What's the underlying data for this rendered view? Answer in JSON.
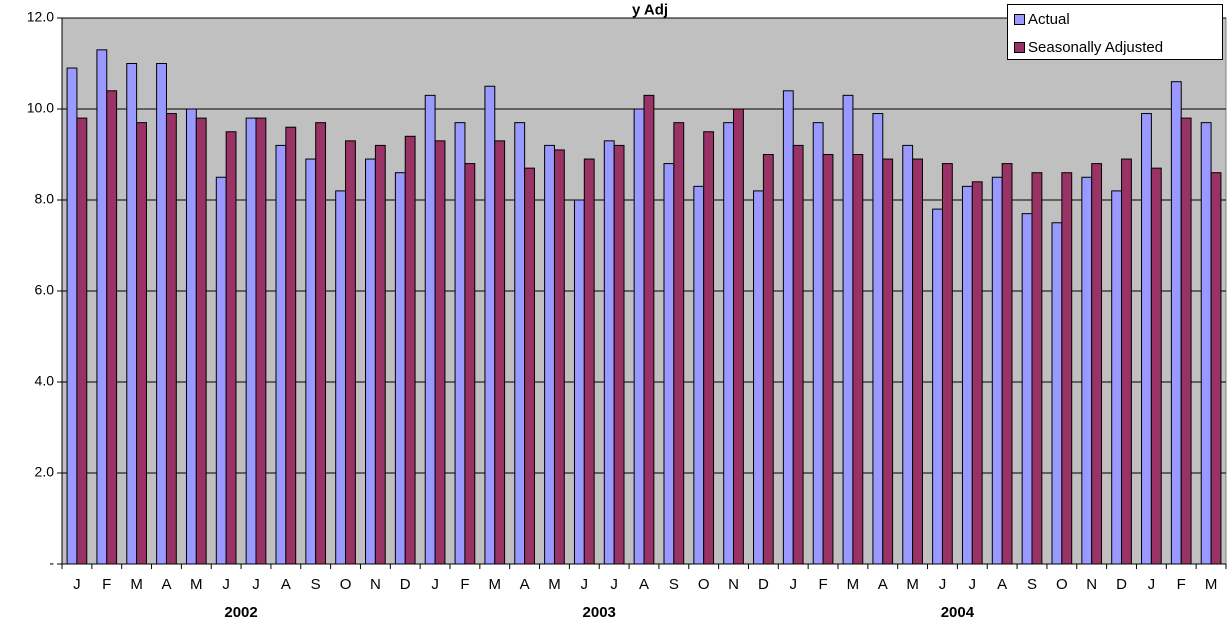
{
  "colors": {
    "actual": "#9999ff",
    "adjusted": "#993366",
    "plot_bg": "#c0c0c0",
    "grid": "#000000"
  },
  "chart_data": {
    "type": "bar",
    "title_fragment": "y Adj",
    "categories": [
      "J",
      "F",
      "M",
      "A",
      "M",
      "J",
      "J",
      "A",
      "S",
      "O",
      "N",
      "D",
      "J",
      "F",
      "M",
      "A",
      "M",
      "J",
      "J",
      "A",
      "S",
      "O",
      "N",
      "D",
      "J",
      "F",
      "M",
      "A",
      "M",
      "J",
      "J",
      "A",
      "S",
      "O",
      "N",
      "D",
      "J",
      "F",
      "M"
    ],
    "year_labels": [
      {
        "label": "2002",
        "start_index": 0,
        "end_index": 11
      },
      {
        "label": "2003",
        "start_index": 12,
        "end_index": 23
      },
      {
        "label": "2004",
        "start_index": 24,
        "end_index": 35
      }
    ],
    "series": [
      {
        "name": "Actual",
        "color": "#9999ff",
        "values": [
          10.9,
          11.3,
          11.0,
          11.0,
          10.0,
          8.5,
          9.8,
          9.2,
          8.9,
          8.2,
          8.9,
          8.6,
          10.3,
          9.7,
          10.5,
          9.7,
          9.2,
          8.0,
          9.3,
          10.0,
          8.8,
          8.3,
          9.7,
          8.2,
          10.4,
          9.7,
          10.3,
          9.9,
          9.2,
          7.8,
          8.3,
          8.5,
          7.7,
          7.5,
          8.5,
          8.2,
          9.9,
          10.6,
          9.7
        ]
      },
      {
        "name": "Seasonally Adjusted",
        "color": "#993366",
        "values": [
          9.8,
          10.4,
          9.7,
          9.9,
          9.8,
          9.5,
          9.8,
          9.6,
          9.7,
          9.3,
          9.2,
          9.4,
          9.3,
          8.8,
          9.3,
          8.7,
          9.1,
          8.9,
          9.2,
          10.3,
          9.7,
          9.5,
          10.0,
          9.0,
          9.2,
          9.0,
          9.0,
          8.9,
          8.9,
          8.8,
          8.4,
          8.8,
          8.6,
          8.6,
          8.8,
          8.9,
          8.7,
          9.8,
          8.6
        ]
      }
    ],
    "ylim": [
      0,
      12
    ],
    "yticks": [
      0,
      2,
      4,
      6,
      8,
      10,
      12
    ],
    "ytick_labels": [
      "-",
      "2.0",
      "4.0",
      "6.0",
      "8.0",
      "10.0",
      "12.0"
    ],
    "grid": true,
    "legend_position": "top-right"
  }
}
